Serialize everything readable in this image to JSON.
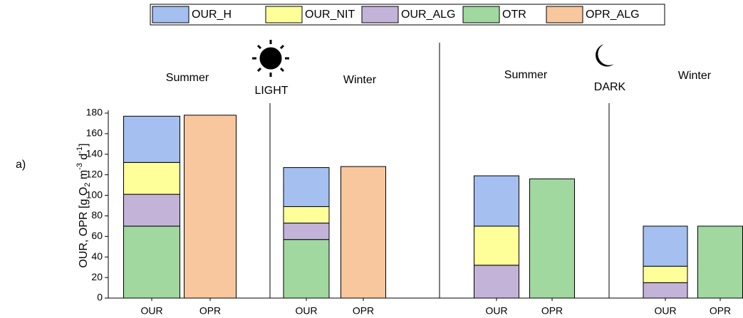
{
  "chart_data": {
    "type": "bar",
    "panel_label": "a)",
    "y_label_parts": [
      "OUR, OPR [g O",
      "2",
      " m",
      "-3",
      " d",
      "-1",
      "]"
    ],
    "groups": [
      "Summer",
      "Winter",
      "Summer",
      "Winter"
    ],
    "annotations": [
      "LIGHT",
      "DARK"
    ],
    "categories": [
      "OUR",
      "OPR",
      "OUR",
      "OPR",
      "OUR",
      "OPR",
      "OUR",
      "OPR"
    ],
    "series": [
      {
        "name": "OUR_H",
        "color": "#a4bff0",
        "values": [
          45,
          null,
          38,
          null,
          49,
          null,
          39,
          null
        ]
      },
      {
        "name": "OUR_NIT",
        "color": "#ffff99",
        "values": [
          31,
          null,
          16,
          null,
          38,
          null,
          16,
          null
        ]
      },
      {
        "name": "OUR_ALG",
        "color": "#c3b3d8",
        "values": [
          31,
          null,
          16,
          null,
          32,
          null,
          15,
          null
        ]
      },
      {
        "name": "OTR",
        "color": "#a0d8a0",
        "values": [
          70,
          null,
          57,
          null,
          null,
          116,
          null,
          70
        ]
      },
      {
        "name": "OPR_ALG",
        "color": "#f8c79e",
        "values": [
          null,
          178,
          null,
          128,
          null,
          null,
          null,
          null
        ]
      }
    ],
    "ylim": [
      0,
      180
    ],
    "yticks": [
      0,
      20,
      40,
      60,
      80,
      100,
      120,
      140,
      160,
      180
    ]
  }
}
